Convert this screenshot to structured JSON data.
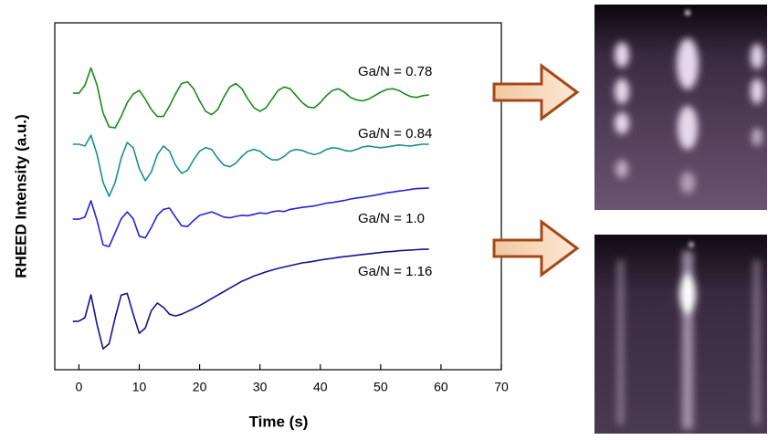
{
  "chart_data": {
    "type": "line",
    "xlabel": "Time (s)",
    "ylabel": "RHEED Intensity (a.u.)",
    "xlim": [
      -4,
      70
    ],
    "ylim": [
      0,
      10
    ],
    "xticks": [
      0,
      10,
      20,
      30,
      40,
      50,
      60,
      70
    ],
    "x": [
      -1,
      0,
      1,
      2,
      3,
      4,
      5,
      6,
      7,
      8,
      9,
      10,
      11,
      12,
      13,
      14,
      15,
      16,
      17,
      18,
      19,
      20,
      21,
      22,
      23,
      24,
      25,
      26,
      27,
      28,
      29,
      30,
      31,
      32,
      33,
      34,
      35,
      36,
      37,
      38,
      39,
      40,
      41,
      42,
      43,
      44,
      45,
      46,
      47,
      48,
      49,
      50,
      51,
      52,
      53,
      54,
      55,
      56,
      57,
      58
    ],
    "series": [
      {
        "name": "Ga/N = 0.78",
        "color": "#1a8a1a",
        "values": [
          7.97,
          7.97,
          8.2,
          8.7,
          8.2,
          7.4,
          7.0,
          6.97,
          7.3,
          7.7,
          7.95,
          8.05,
          7.8,
          7.5,
          7.3,
          7.3,
          7.6,
          7.95,
          8.25,
          8.3,
          8.1,
          7.75,
          7.45,
          7.35,
          7.5,
          7.85,
          8.15,
          8.25,
          8.1,
          7.8,
          7.55,
          7.45,
          7.55,
          7.8,
          8.05,
          8.15,
          8.1,
          7.9,
          7.7,
          7.57,
          7.55,
          7.7,
          7.9,
          8.05,
          8.1,
          8.0,
          7.85,
          7.78,
          7.75,
          7.8,
          7.9,
          8.0,
          8.08,
          8.1,
          8.05,
          7.95,
          7.87,
          7.85,
          7.9,
          7.92
        ]
      },
      {
        "name": "Ga/N = 0.84",
        "color": "#1a8f8f",
        "values": [
          6.5,
          6.5,
          6.45,
          6.76,
          6.2,
          5.4,
          5.0,
          5.4,
          6.1,
          6.55,
          6.4,
          5.8,
          5.45,
          5.7,
          6.2,
          6.45,
          6.3,
          5.9,
          5.66,
          5.75,
          6.05,
          6.3,
          6.4,
          6.35,
          6.1,
          5.9,
          5.85,
          5.95,
          6.15,
          6.3,
          6.35,
          6.3,
          6.15,
          6.05,
          6.05,
          6.15,
          6.3,
          6.35,
          6.32,
          6.25,
          6.2,
          6.25,
          6.35,
          6.4,
          6.38,
          6.32,
          6.3,
          6.35,
          6.42,
          6.45,
          6.42,
          6.4,
          6.42,
          6.45,
          6.48,
          6.46,
          6.45,
          6.48,
          6.5,
          6.5
        ]
      },
      {
        "name": "Ga/N = 1.0",
        "color": "#2222dd",
        "values": [
          4.34,
          4.34,
          4.4,
          4.87,
          4.3,
          3.6,
          3.55,
          3.95,
          4.35,
          4.55,
          4.35,
          3.85,
          3.8,
          4.1,
          4.45,
          4.62,
          4.66,
          4.4,
          4.15,
          4.13,
          4.3,
          4.45,
          4.5,
          4.55,
          4.48,
          4.4,
          4.38,
          4.42,
          4.45,
          4.44,
          4.48,
          4.52,
          4.5,
          4.55,
          4.58,
          4.56,
          4.62,
          4.65,
          4.68,
          4.7,
          4.72,
          4.76,
          4.8,
          4.82,
          4.85,
          4.88,
          4.92,
          4.95,
          4.97,
          5.0,
          5.03,
          5.06,
          5.1,
          5.12,
          5.15,
          5.17,
          5.2,
          5.22,
          5.23,
          5.24
        ]
      },
      {
        "name": "Ga/N = 1.16",
        "color": "#12128f",
        "values": [
          1.39,
          1.4,
          1.5,
          2.16,
          1.3,
          0.6,
          0.75,
          1.5,
          2.15,
          2.2,
          1.6,
          1.05,
          1.2,
          1.7,
          1.92,
          1.8,
          1.6,
          1.55,
          1.6,
          1.68,
          1.76,
          1.85,
          1.95,
          2.05,
          2.15,
          2.25,
          2.35,
          2.45,
          2.55,
          2.62,
          2.7,
          2.76,
          2.82,
          2.87,
          2.92,
          2.96,
          3.0,
          3.04,
          3.08,
          3.1,
          3.13,
          3.16,
          3.19,
          3.21,
          3.24,
          3.26,
          3.28,
          3.3,
          3.32,
          3.34,
          3.36,
          3.38,
          3.4,
          3.41,
          3.43,
          3.44,
          3.45,
          3.46,
          3.47,
          3.47
        ]
      }
    ]
  }
}
